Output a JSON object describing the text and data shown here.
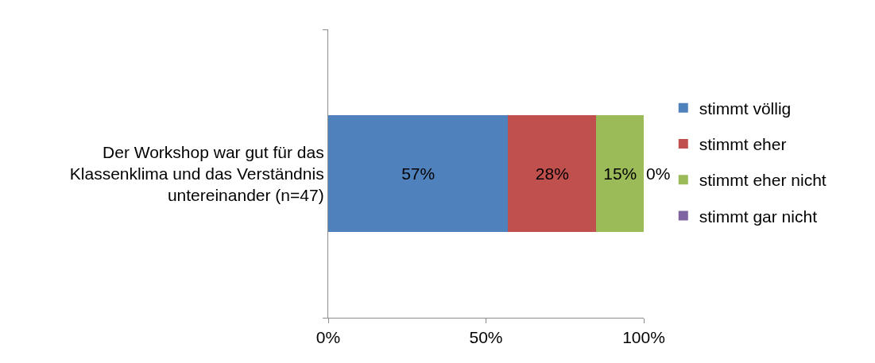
{
  "chart_data": {
    "type": "bar",
    "orientation": "horizontal",
    "stacked": true,
    "legend": "right",
    "categories": [
      "Der Workshop war gut für das Klassenklima und das Verständnis untereinander (n=47)"
    ],
    "series": [
      {
        "name": "stimmt völlig",
        "color": "#4f81bd",
        "values": [
          57
        ],
        "value_labels": [
          "57%"
        ]
      },
      {
        "name": "stimmt eher",
        "color": "#c0504d",
        "values": [
          28
        ],
        "value_labels": [
          "28%"
        ]
      },
      {
        "name": "stimmt eher nicht",
        "color": "#9bbb59",
        "values": [
          15
        ],
        "value_labels": [
          "15%"
        ]
      },
      {
        "name": "stimmt gar nicht",
        "color": "#8064a2",
        "values": [
          0
        ],
        "value_labels": [
          "0%"
        ]
      }
    ],
    "xlim": [
      0,
      100
    ],
    "xticks": [
      {
        "value": 0,
        "label": "0%"
      },
      {
        "value": 50,
        "label": "50%"
      },
      {
        "value": 100,
        "label": "100%"
      }
    ]
  }
}
